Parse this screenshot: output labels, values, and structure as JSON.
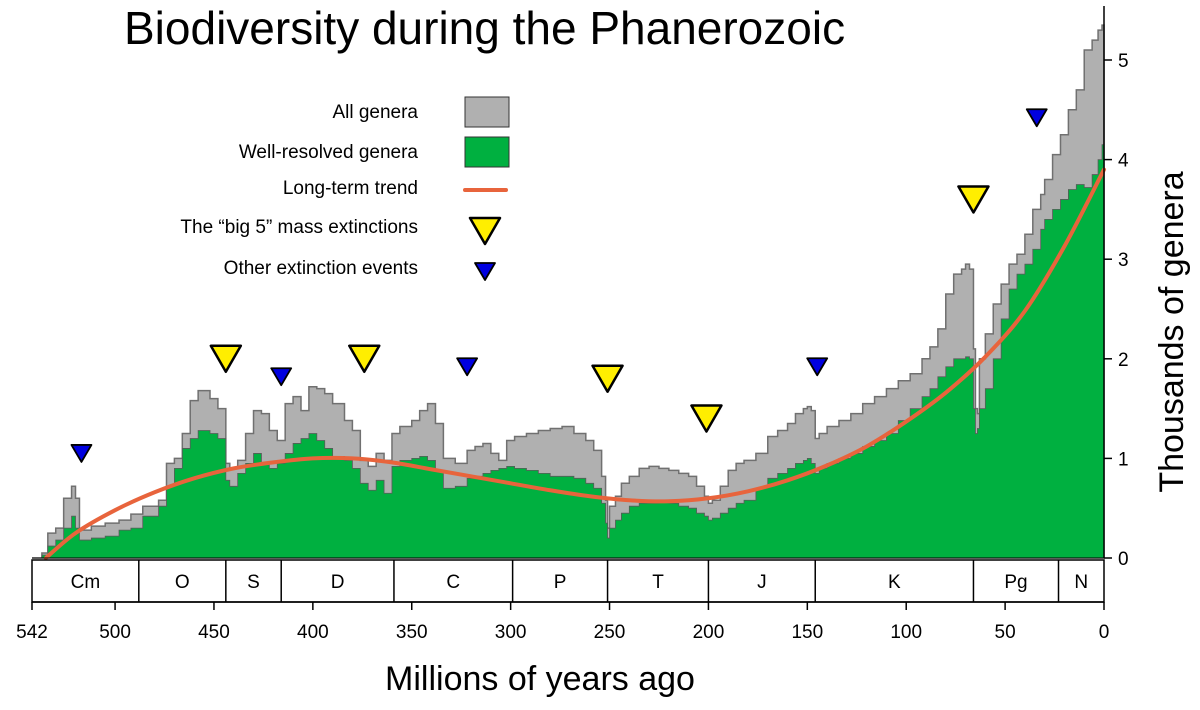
{
  "chart_data": {
    "type": "area",
    "title": "Biodiversity during the Phanerozoic",
    "xlabel": "Millions of years ago",
    "ylabel": "Thousands of genera",
    "xlim": [
      542,
      0
    ],
    "ylim": [
      0,
      5.5
    ],
    "x_ticks": [
      542,
      500,
      450,
      400,
      350,
      300,
      250,
      200,
      150,
      100,
      50,
      0
    ],
    "y_ticks": [
      0,
      1,
      2,
      3,
      4,
      5
    ],
    "legend": {
      "placement": "top-left",
      "items": [
        {
          "label": "All genera",
          "color": "#b0b0b0",
          "symbol": "box"
        },
        {
          "label": "Well-resolved genera",
          "color": "#00b040",
          "symbol": "box"
        },
        {
          "label": "Long-term trend",
          "color": "#e8643c",
          "symbol": "line"
        },
        {
          "label": "The “big 5” mass extinctions",
          "color": "#ffee00",
          "symbol": "big-triangle"
        },
        {
          "label": "Other extinction events",
          "color": "#0000e0",
          "symbol": "small-triangle"
        }
      ]
    },
    "periods": [
      {
        "label": "Cm",
        "start": 542,
        "end": 488
      },
      {
        "label": "O",
        "start": 488,
        "end": 444
      },
      {
        "label": "S",
        "start": 444,
        "end": 416
      },
      {
        "label": "D",
        "start": 416,
        "end": 359
      },
      {
        "label": "C",
        "start": 359,
        "end": 299
      },
      {
        "label": "P",
        "start": 299,
        "end": 251
      },
      {
        "label": "T",
        "start": 251,
        "end": 200
      },
      {
        "label": "J",
        "start": 200,
        "end": 146
      },
      {
        "label": "K",
        "start": 146,
        "end": 66
      },
      {
        "label": "Pg",
        "start": 66,
        "end": 23
      },
      {
        "label": "N",
        "start": 23,
        "end": 0
      }
    ],
    "series": [
      {
        "name": "All genera",
        "color": "#b0b0b0",
        "x": [
          542,
          537,
          534,
          530,
          526,
          522,
          520,
          518,
          512,
          505,
          498,
          492,
          486,
          478,
          474,
          470,
          466,
          462,
          458,
          452,
          448,
          444,
          442,
          438,
          434,
          430,
          426,
          422,
          418,
          414,
          410,
          406,
          402,
          398,
          394,
          390,
          384,
          380,
          376,
          372,
          368,
          364,
          360,
          356,
          350,
          346,
          342,
          338,
          334,
          328,
          322,
          318,
          314,
          310,
          306,
          302,
          298,
          292,
          286,
          280,
          274,
          268,
          262,
          258,
          254,
          252,
          251,
          250,
          247,
          244,
          240,
          235,
          230,
          225,
          220,
          215,
          210,
          206,
          202,
          200,
          198,
          194,
          190,
          186,
          182,
          176,
          170,
          165,
          160,
          156,
          152,
          150,
          148,
          146,
          144,
          140,
          134,
          128,
          122,
          116,
          110,
          104,
          98,
          92,
          88,
          84,
          80,
          76,
          72,
          70,
          68,
          66,
          65,
          64,
          63,
          60,
          56,
          52,
          48,
          44,
          40,
          36,
          32,
          30,
          26,
          22,
          18,
          14,
          10,
          6,
          3,
          1,
          0
        ],
        "y": [
          0,
          0.05,
          0.25,
          0.3,
          0.6,
          0.72,
          0.6,
          0.28,
          0.32,
          0.35,
          0.38,
          0.44,
          0.52,
          0.58,
          0.95,
          1.0,
          1.25,
          1.58,
          1.68,
          1.6,
          1.5,
          0.95,
          0.9,
          0.98,
          1.25,
          1.48,
          1.45,
          1.28,
          1.18,
          1.55,
          1.62,
          1.48,
          1.72,
          1.7,
          1.65,
          1.55,
          1.38,
          1.28,
          0.98,
          0.92,
          1.05,
          0.98,
          1.25,
          1.32,
          1.38,
          1.48,
          1.55,
          1.35,
          1.0,
          0.95,
          1.08,
          1.12,
          1.15,
          1.05,
          0.98,
          1.18,
          1.22,
          1.25,
          1.28,
          1.3,
          1.32,
          1.25,
          1.18,
          1.08,
          0.82,
          0.58,
          0.3,
          0.52,
          0.62,
          0.75,
          0.82,
          0.9,
          0.92,
          0.9,
          0.88,
          0.85,
          0.82,
          0.72,
          0.62,
          0.55,
          0.58,
          0.72,
          0.88,
          0.95,
          0.98,
          1.05,
          1.22,
          1.28,
          1.35,
          1.45,
          1.5,
          1.52,
          1.48,
          1.2,
          1.25,
          1.32,
          1.38,
          1.45,
          1.55,
          1.62,
          1.7,
          1.78,
          1.85,
          2.0,
          2.12,
          2.3,
          2.65,
          2.85,
          2.9,
          2.95,
          2.9,
          2.1,
          1.5,
          1.45,
          2.0,
          2.25,
          2.55,
          2.75,
          2.95,
          3.05,
          3.25,
          3.5,
          3.65,
          3.8,
          4.05,
          4.25,
          4.5,
          4.7,
          5.1,
          5.2,
          5.3,
          5.35,
          5.3
        ]
      },
      {
        "name": "Well-resolved genera",
        "color": "#00b040",
        "x": [
          542,
          537,
          534,
          530,
          526,
          522,
          520,
          518,
          512,
          505,
          498,
          492,
          486,
          478,
          474,
          470,
          466,
          462,
          458,
          452,
          448,
          444,
          442,
          438,
          434,
          430,
          426,
          422,
          418,
          414,
          410,
          406,
          402,
          398,
          394,
          390,
          384,
          380,
          376,
          372,
          368,
          364,
          360,
          356,
          350,
          346,
          342,
          338,
          334,
          328,
          322,
          318,
          314,
          310,
          306,
          302,
          298,
          292,
          286,
          280,
          274,
          268,
          262,
          258,
          254,
          252,
          251,
          250,
          247,
          244,
          240,
          235,
          230,
          225,
          220,
          215,
          210,
          206,
          202,
          200,
          198,
          194,
          190,
          186,
          182,
          176,
          170,
          165,
          160,
          156,
          152,
          150,
          148,
          146,
          144,
          140,
          134,
          128,
          122,
          116,
          110,
          104,
          98,
          92,
          88,
          84,
          80,
          76,
          72,
          70,
          68,
          66,
          65,
          64,
          63,
          60,
          56,
          52,
          48,
          44,
          40,
          36,
          32,
          30,
          26,
          22,
          18,
          14,
          10,
          6,
          3,
          1,
          0
        ],
        "y": [
          0,
          0.03,
          0.12,
          0.18,
          0.3,
          0.42,
          0.3,
          0.18,
          0.2,
          0.22,
          0.28,
          0.3,
          0.42,
          0.52,
          0.72,
          0.9,
          1.1,
          1.2,
          1.28,
          1.25,
          1.2,
          0.78,
          0.72,
          0.85,
          0.95,
          1.05,
          0.95,
          0.9,
          0.95,
          1.05,
          1.15,
          1.2,
          1.25,
          1.18,
          1.1,
          1.02,
          0.98,
          0.9,
          0.75,
          0.68,
          0.78,
          0.65,
          0.92,
          0.98,
          1.0,
          1.02,
          0.98,
          0.88,
          0.7,
          0.72,
          0.8,
          0.82,
          0.85,
          0.88,
          0.9,
          0.92,
          0.9,
          0.88,
          0.85,
          0.82,
          0.82,
          0.8,
          0.75,
          0.7,
          0.55,
          0.35,
          0.2,
          0.3,
          0.38,
          0.45,
          0.52,
          0.55,
          0.55,
          0.58,
          0.55,
          0.52,
          0.5,
          0.45,
          0.42,
          0.38,
          0.4,
          0.45,
          0.5,
          0.55,
          0.58,
          0.7,
          0.8,
          0.85,
          0.9,
          0.95,
          0.98,
          1.0,
          0.95,
          0.85,
          0.9,
          0.95,
          1.0,
          1.05,
          1.12,
          1.18,
          1.25,
          1.38,
          1.5,
          1.62,
          1.7,
          1.82,
          1.92,
          2.0,
          2.0,
          2.02,
          2.0,
          1.5,
          1.25,
          1.3,
          1.5,
          1.7,
          2.0,
          2.4,
          2.7,
          2.85,
          2.95,
          3.1,
          3.3,
          3.4,
          3.5,
          3.6,
          3.7,
          3.75,
          3.72,
          3.85,
          4.0,
          4.15,
          4.2
        ]
      },
      {
        "name": "Long-term trend",
        "color": "#e8643c",
        "x": [
          535,
          520,
          500,
          480,
          460,
          440,
          420,
          400,
          380,
          360,
          340,
          320,
          300,
          280,
          260,
          240,
          220,
          200,
          180,
          160,
          140,
          120,
          100,
          80,
          60,
          40,
          20,
          0
        ],
        "y": [
          0,
          0.25,
          0.48,
          0.66,
          0.8,
          0.9,
          0.96,
          1.0,
          1.0,
          0.96,
          0.89,
          0.82,
          0.75,
          0.68,
          0.62,
          0.58,
          0.57,
          0.6,
          0.67,
          0.78,
          0.93,
          1.12,
          1.37,
          1.66,
          2.02,
          2.48,
          3.13,
          3.9
        ]
      }
    ],
    "extinction_markers": [
      {
        "kind": "big-5",
        "x": 444,
        "y_level": 2.0
      },
      {
        "kind": "big-5",
        "x": 374,
        "y_level": 2.0
      },
      {
        "kind": "big-5",
        "x": 251,
        "y_level": 1.8
      },
      {
        "kind": "big-5",
        "x": 201,
        "y_level": 1.4
      },
      {
        "kind": "big-5",
        "x": 66,
        "y_level": 3.6
      },
      {
        "kind": "other",
        "x": 517,
        "y_level": 1.05
      },
      {
        "kind": "other",
        "x": 416,
        "y_level": 1.82
      },
      {
        "kind": "other",
        "x": 322,
        "y_level": 1.92
      },
      {
        "kind": "other",
        "x": 145,
        "y_level": 1.92
      },
      {
        "kind": "other",
        "x": 34,
        "y_level": 4.42
      }
    ]
  }
}
